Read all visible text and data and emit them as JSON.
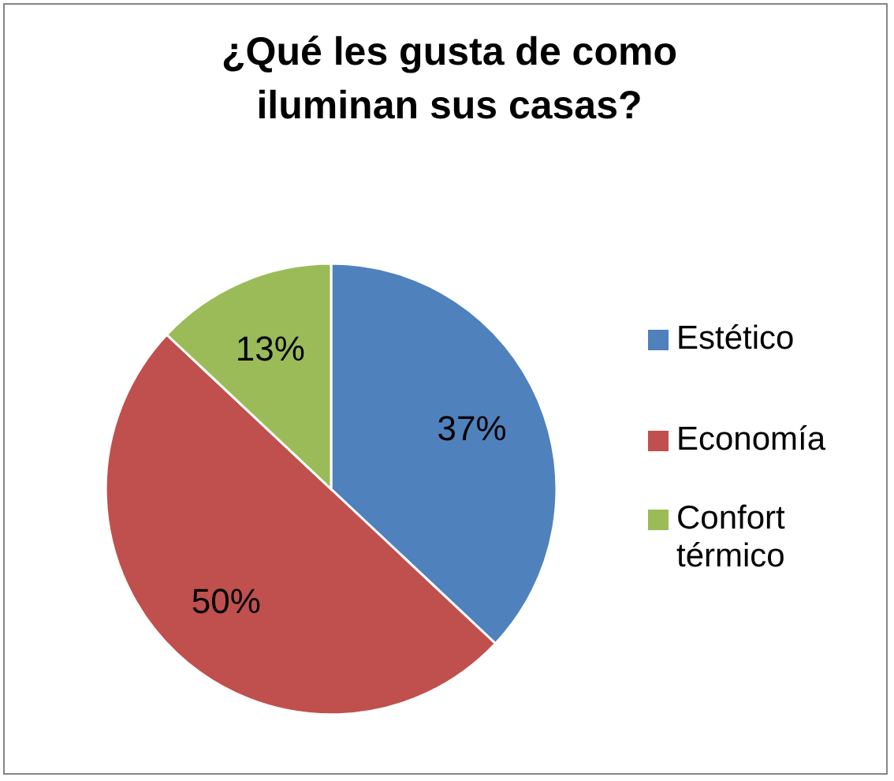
{
  "chart_data": {
    "type": "pie",
    "title": "¿Qué les gusta de como iluminan sus casas?",
    "categories": [
      "Estético",
      "Economía",
      "Confort térmico"
    ],
    "values": [
      37,
      50,
      13
    ],
    "colors": [
      "#4f81bd",
      "#c0504d",
      "#9bbb59"
    ],
    "value_labels": [
      "37%",
      "50%",
      "13%"
    ],
    "legend": "right"
  }
}
